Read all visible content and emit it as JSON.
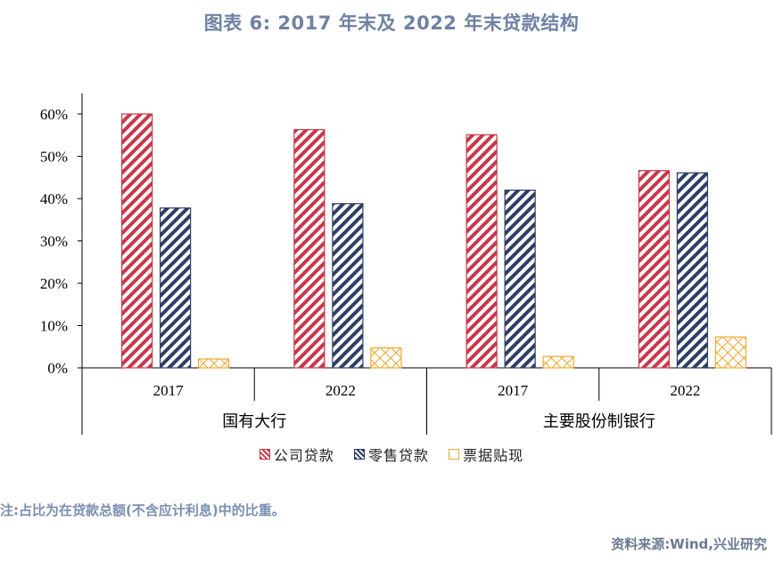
{
  "title": "图表 6:   2017 年末及 2022 年末贷款结构",
  "chart_data": {
    "type": "bar",
    "groups": [
      {
        "label": "国有大行",
        "categories": [
          "2017",
          "2022"
        ]
      },
      {
        "label": "主要股份制银行",
        "categories": [
          "2017",
          "2022"
        ]
      }
    ],
    "categories": [
      "2017",
      "2022",
      "2017",
      "2022"
    ],
    "series": [
      {
        "name": "公司贷款",
        "color": "#c8374a",
        "values": [
          0.6,
          0.563,
          0.551,
          0.466
        ]
      },
      {
        "name": "零售贷款",
        "color": "#2e3e66",
        "values": [
          0.378,
          0.388,
          0.42,
          0.461
        ]
      },
      {
        "name": "票据贴现",
        "color": "#f0a830",
        "values": [
          0.021,
          0.047,
          0.027,
          0.073
        ]
      }
    ],
    "yticks": [
      "0%",
      "10%",
      "20%",
      "30%",
      "40%",
      "50%",
      "60%"
    ],
    "ylim": [
      0,
      0.65
    ],
    "legend_position": "bottom"
  },
  "note": "注:占比为在贷款总额(不含应计利息)中的比重。",
  "source": "资料来源:Wind,兴业研究"
}
